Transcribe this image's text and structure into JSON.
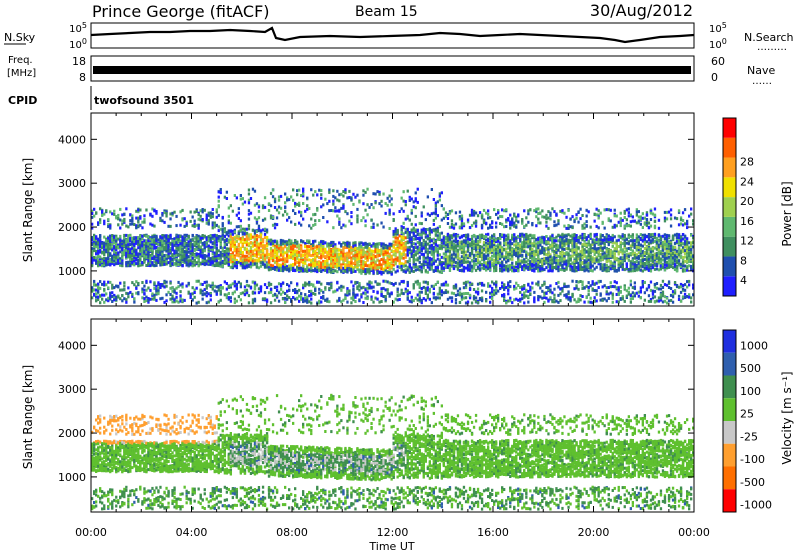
{
  "header": {
    "station": "Prince George (fitACF)",
    "beam": "Beam 15",
    "date": "30/Aug/2012"
  },
  "strip_labels": {
    "nsky": "N.Sky",
    "nsearch": "N.Search",
    "nsearch_dots": "………",
    "freq_line1": "Freq.",
    "freq_line2": "[MHz]",
    "nave": "Nave",
    "nave_dots": "……",
    "cpid": "CPID",
    "cpid_value": "twofsound 3501"
  },
  "strip_ticks": {
    "nsky_left": [
      "10^5",
      "10^0"
    ],
    "nsky_right": [
      "10^5",
      "10^0"
    ],
    "freq_left": [
      "18",
      "8"
    ],
    "freq_right": [
      "60",
      "0"
    ]
  },
  "colors": {
    "power_scale": [
      "#1f1fff",
      "#1f4fae",
      "#3f8f5f",
      "#5fb86f",
      "#9fd04f",
      "#f0e000",
      "#ff9f1f",
      "#ff5f00",
      "#ff0000"
    ],
    "velocity_scale": [
      "#1f2fdf",
      "#2f5fae",
      "#3f8f4f",
      "#5fc02f",
      "#c8c8c8",
      "#ff9f2f",
      "#ff6f00",
      "#ff0000"
    ]
  },
  "chart_data": [
    {
      "type": "heatmap",
      "title": "",
      "xlabel": "Time UT",
      "ylabel": "Slant Range [km]",
      "ylim": [
        200,
        4600
      ],
      "x_ticks": [
        "00:00",
        "04:00",
        "08:00",
        "12:00",
        "16:00",
        "20:00",
        "00:00"
      ],
      "y_ticks": [
        1000,
        2000,
        3000,
        4000
      ],
      "colorbar": {
        "label": "Power [dB]",
        "ticks": [
          4,
          8,
          12,
          16,
          20,
          24,
          28
        ]
      }
    },
    {
      "type": "heatmap",
      "title": "",
      "xlabel": "Time UT",
      "ylabel": "Slant Range [km]",
      "ylim": [
        200,
        4600
      ],
      "x_ticks": [
        "00:00",
        "04:00",
        "08:00",
        "12:00",
        "16:00",
        "20:00",
        "00:00"
      ],
      "y_ticks": [
        1000,
        2000,
        3000,
        4000
      ],
      "colorbar": {
        "label": "Velocity [m s⁻¹]",
        "ticks": [
          1000,
          500,
          100,
          25,
          -25,
          -100,
          -500,
          -1000
        ]
      }
    }
  ]
}
